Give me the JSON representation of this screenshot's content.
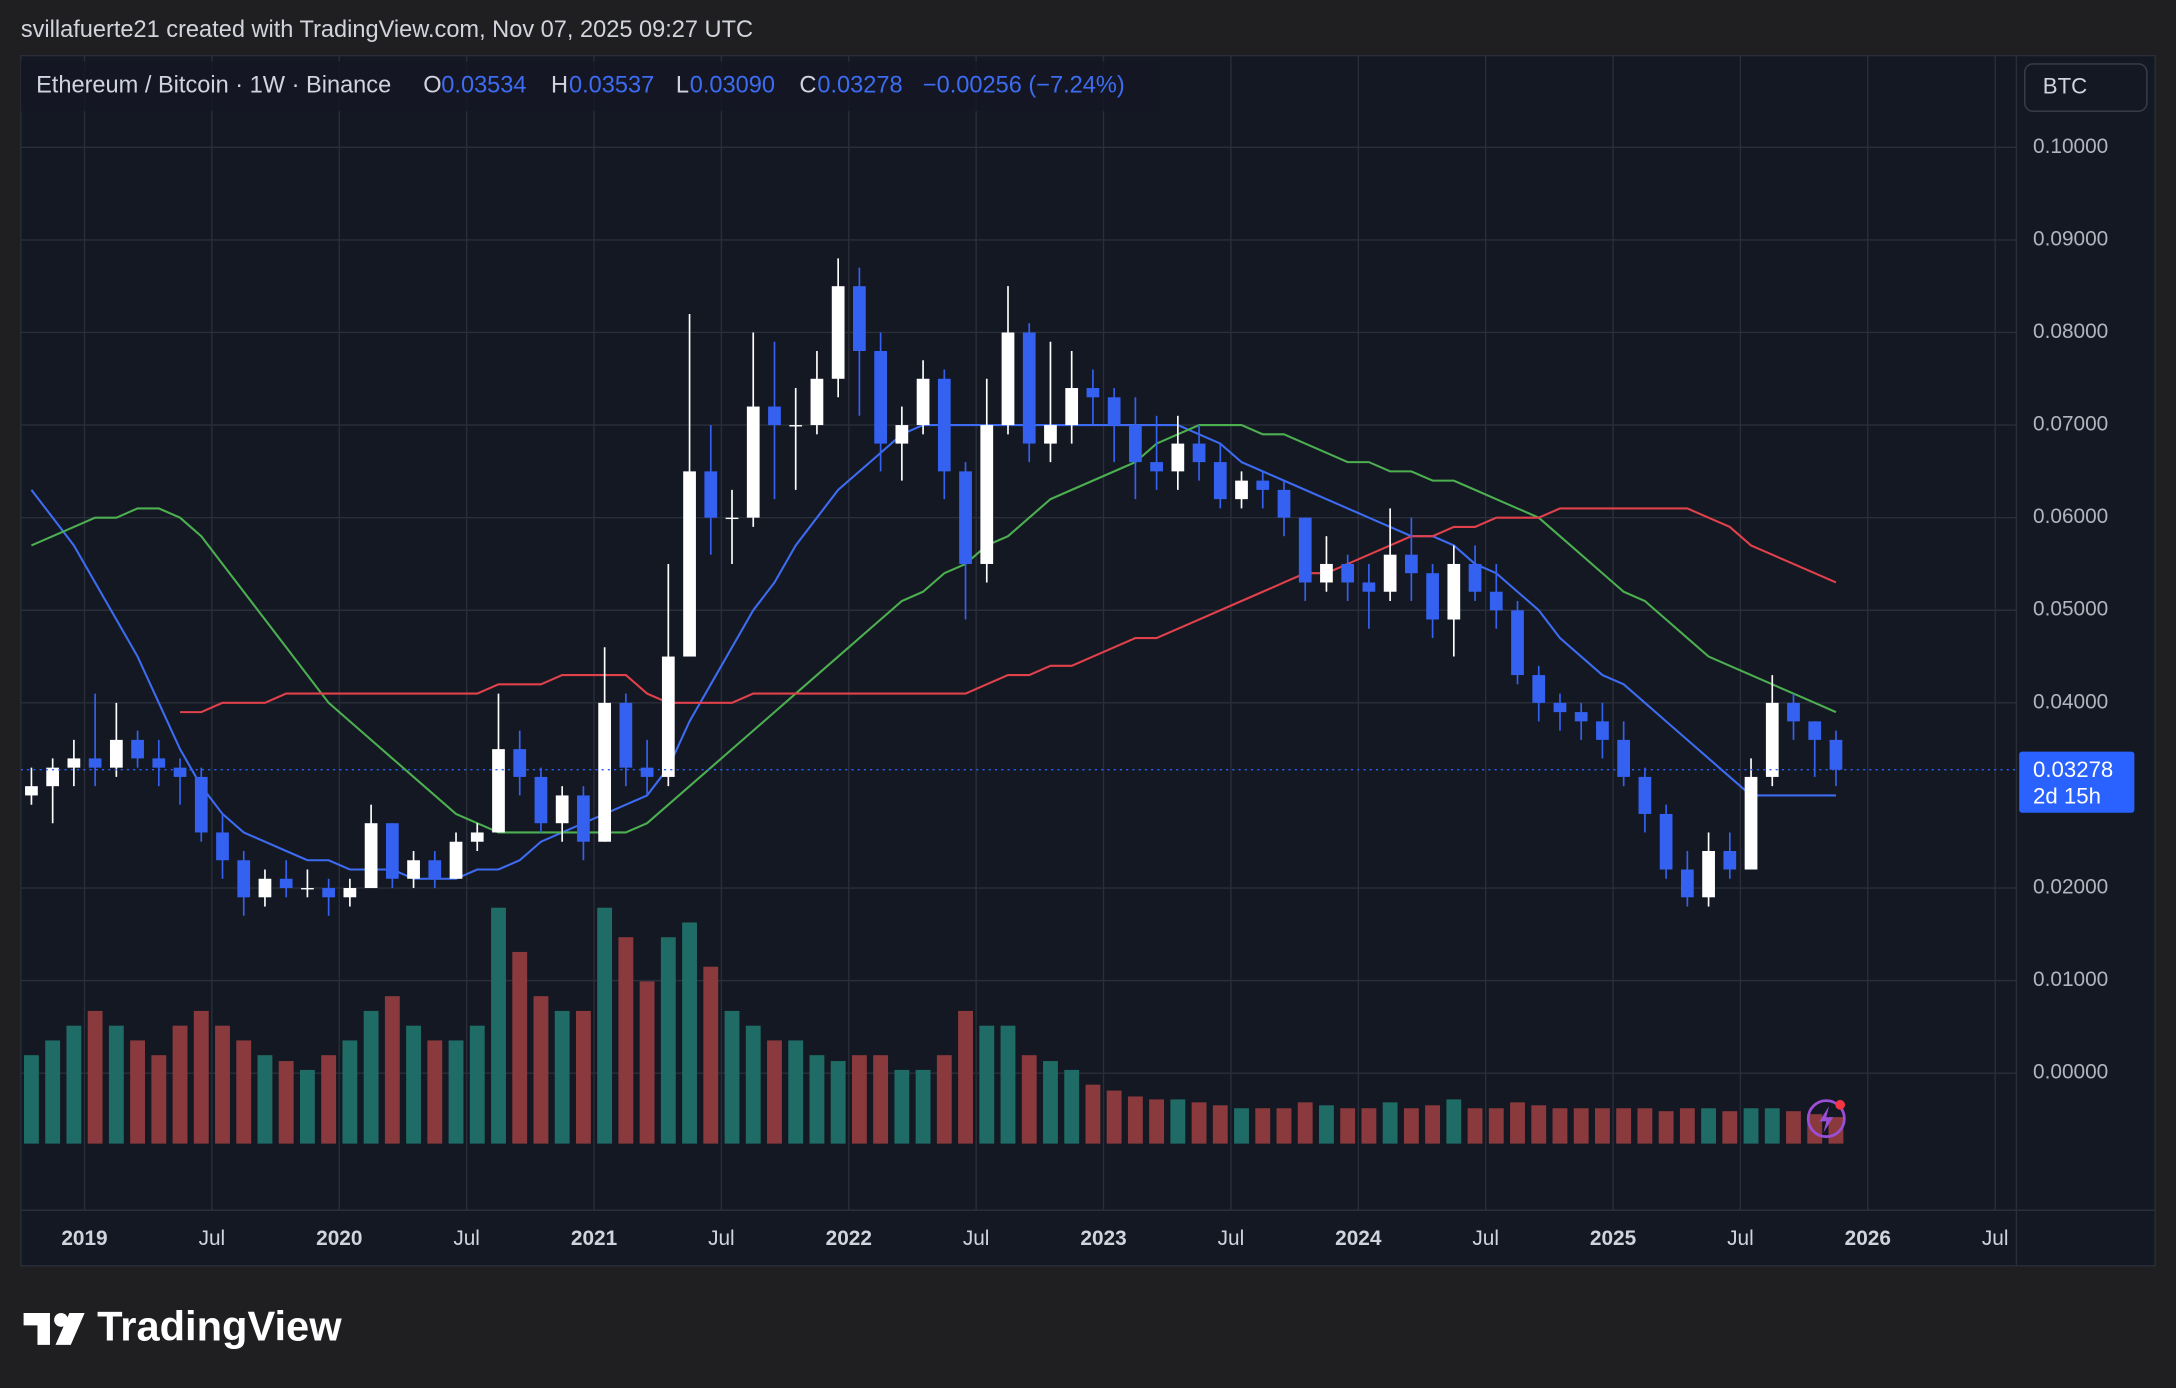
{
  "header": {
    "attribution": "svillafuerte21 created with TradingView.com, Nov 07, 2025 09:27 UTC"
  },
  "branding": "TradingView",
  "chart_data": {
    "type": "candlestick",
    "title": "Ethereum / Bitcoin · 1W · Binance",
    "ohlc_legend": [
      {
        "key": "O",
        "value": "0.03534"
      },
      {
        "key": "H",
        "value": "0.03537"
      },
      {
        "key": "L",
        "value": "0.03090"
      },
      {
        "key": "C",
        "value": "0.03278"
      }
    ],
    "change": "−0.00256 (−7.24%)",
    "currency": "BTC",
    "x": [
      "2018-10",
      "2018-11",
      "2018-12",
      "2019-01",
      "2019-02",
      "2019-03",
      "2019-04",
      "2019-05",
      "2019-06",
      "2019-07",
      "2019-08",
      "2019-09",
      "2019-10",
      "2019-11",
      "2019-12",
      "2020-01",
      "2020-02",
      "2020-03",
      "2020-04",
      "2020-05",
      "2020-06",
      "2020-07",
      "2020-08",
      "2020-09",
      "2020-10",
      "2020-11",
      "2020-12",
      "2021-01",
      "2021-02",
      "2021-03",
      "2021-04",
      "2021-05",
      "2021-06",
      "2021-07",
      "2021-08",
      "2021-09",
      "2021-10",
      "2021-11",
      "2021-12",
      "2022-01",
      "2022-02",
      "2022-03",
      "2022-04",
      "2022-05",
      "2022-06",
      "2022-07",
      "2022-08",
      "2022-09",
      "2022-10",
      "2022-11",
      "2022-12",
      "2023-01",
      "2023-02",
      "2023-03",
      "2023-04",
      "2023-05",
      "2023-06",
      "2023-07",
      "2023-08",
      "2023-09",
      "2023-10",
      "2023-11",
      "2023-12",
      "2024-01",
      "2024-02",
      "2024-03",
      "2024-04",
      "2024-05",
      "2024-06",
      "2024-07",
      "2024-08",
      "2024-09",
      "2024-10",
      "2024-11",
      "2024-12",
      "2025-01",
      "2025-02",
      "2025-03",
      "2025-04",
      "2025-05",
      "2025-06",
      "2025-07",
      "2025-08",
      "2025-09",
      "2025-10",
      "2025-11"
    ],
    "open": [
      0.03,
      0.031,
      0.033,
      0.034,
      0.033,
      0.036,
      0.034,
      0.033,
      0.032,
      0.026,
      0.023,
      0.019,
      0.021,
      0.02,
      0.02,
      0.019,
      0.02,
      0.027,
      0.021,
      0.023,
      0.021,
      0.025,
      0.026,
      0.035,
      0.032,
      0.027,
      0.03,
      0.025,
      0.04,
      0.033,
      0.032,
      0.045,
      0.065,
      0.06,
      0.06,
      0.072,
      0.07,
      0.07,
      0.075,
      0.085,
      0.078,
      0.068,
      0.07,
      0.075,
      0.065,
      0.055,
      0.07,
      0.08,
      0.068,
      0.07,
      0.074,
      0.073,
      0.07,
      0.066,
      0.065,
      0.068,
      0.066,
      0.062,
      0.064,
      0.063,
      0.06,
      0.053,
      0.055,
      0.053,
      0.052,
      0.056,
      0.054,
      0.049,
      0.055,
      0.052,
      0.05,
      0.043,
      0.04,
      0.039,
      0.038,
      0.036,
      0.032,
      0.028,
      0.022,
      0.019,
      0.024,
      0.022,
      0.032,
      0.04,
      0.038,
      0.036
    ],
    "high": [
      0.033,
      0.034,
      0.036,
      0.041,
      0.04,
      0.037,
      0.036,
      0.034,
      0.033,
      0.028,
      0.024,
      0.022,
      0.023,
      0.022,
      0.021,
      0.021,
      0.029,
      0.027,
      0.024,
      0.024,
      0.026,
      0.027,
      0.041,
      0.037,
      0.033,
      0.031,
      0.031,
      0.046,
      0.041,
      0.036,
      0.055,
      0.082,
      0.07,
      0.063,
      0.08,
      0.079,
      0.074,
      0.078,
      0.088,
      0.087,
      0.08,
      0.072,
      0.077,
      0.076,
      0.066,
      0.075,
      0.085,
      0.081,
      0.079,
      0.078,
      0.076,
      0.074,
      0.073,
      0.071,
      0.071,
      0.07,
      0.068,
      0.065,
      0.065,
      0.064,
      0.06,
      0.058,
      0.056,
      0.055,
      0.061,
      0.06,
      0.055,
      0.057,
      0.057,
      0.055,
      0.051,
      0.044,
      0.041,
      0.04,
      0.04,
      0.038,
      0.033,
      0.029,
      0.024,
      0.026,
      0.026,
      0.034,
      0.043,
      0.041,
      0.038,
      0.037
    ],
    "low": [
      0.029,
      0.027,
      0.031,
      0.031,
      0.032,
      0.033,
      0.031,
      0.029,
      0.025,
      0.021,
      0.017,
      0.018,
      0.019,
      0.019,
      0.017,
      0.018,
      0.02,
      0.02,
      0.02,
      0.02,
      0.021,
      0.024,
      0.026,
      0.03,
      0.026,
      0.025,
      0.023,
      0.025,
      0.031,
      0.03,
      0.031,
      0.045,
      0.056,
      0.055,
      0.059,
      0.062,
      0.063,
      0.069,
      0.073,
      0.071,
      0.065,
      0.064,
      0.069,
      0.062,
      0.049,
      0.053,
      0.069,
      0.066,
      0.066,
      0.068,
      0.07,
      0.066,
      0.062,
      0.063,
      0.063,
      0.064,
      0.061,
      0.061,
      0.061,
      0.058,
      0.051,
      0.052,
      0.051,
      0.048,
      0.051,
      0.051,
      0.047,
      0.045,
      0.051,
      0.048,
      0.042,
      0.038,
      0.037,
      0.036,
      0.034,
      0.031,
      0.026,
      0.021,
      0.018,
      0.018,
      0.021,
      0.022,
      0.031,
      0.036,
      0.032,
      0.031
    ],
    "close": [
      0.031,
      0.033,
      0.034,
      0.033,
      0.036,
      0.034,
      0.033,
      0.032,
      0.026,
      0.023,
      0.019,
      0.021,
      0.02,
      0.02,
      0.019,
      0.02,
      0.027,
      0.021,
      0.023,
      0.021,
      0.025,
      0.026,
      0.035,
      0.032,
      0.027,
      0.03,
      0.025,
      0.04,
      0.033,
      0.032,
      0.045,
      0.065,
      0.06,
      0.06,
      0.072,
      0.07,
      0.07,
      0.075,
      0.085,
      0.078,
      0.068,
      0.07,
      0.075,
      0.065,
      0.055,
      0.07,
      0.08,
      0.068,
      0.07,
      0.074,
      0.073,
      0.07,
      0.066,
      0.065,
      0.068,
      0.066,
      0.062,
      0.064,
      0.063,
      0.06,
      0.053,
      0.055,
      0.053,
      0.052,
      0.056,
      0.054,
      0.049,
      0.055,
      0.052,
      0.05,
      0.043,
      0.04,
      0.039,
      0.038,
      0.036,
      0.032,
      0.028,
      0.022,
      0.019,
      0.024,
      0.022,
      0.032,
      0.04,
      0.038,
      0.036,
      0.03278
    ],
    "up_color": "#ffffff",
    "down_color": "#3561f0",
    "series": [
      {
        "color": "#3d6cf2",
        "values": [
          0.063,
          0.06,
          0.057,
          0.053,
          0.049,
          0.045,
          0.04,
          0.035,
          0.031,
          0.028,
          0.026,
          0.025,
          0.024,
          0.023,
          0.023,
          0.022,
          0.022,
          0.022,
          0.021,
          0.021,
          0.021,
          0.022,
          0.022,
          0.023,
          0.025,
          0.026,
          0.027,
          0.028,
          0.029,
          0.03,
          0.033,
          0.038,
          0.042,
          0.046,
          0.05,
          0.053,
          0.057,
          0.06,
          0.063,
          0.065,
          0.067,
          0.069,
          0.07,
          0.07,
          0.07,
          0.07,
          0.07,
          0.07,
          0.07,
          0.07,
          0.07,
          0.07,
          0.07,
          0.07,
          0.07,
          0.069,
          0.068,
          0.066,
          0.065,
          0.064,
          0.063,
          0.062,
          0.061,
          0.06,
          0.059,
          0.058,
          0.058,
          0.057,
          0.055,
          0.054,
          0.052,
          0.05,
          0.047,
          0.045,
          0.043,
          0.042,
          0.04,
          0.038,
          0.036,
          0.034,
          0.032,
          0.03,
          0.03,
          0.03,
          0.03,
          0.03
        ]
      },
      {
        "color": "#4caf50",
        "values": [
          0.057,
          0.058,
          0.059,
          0.06,
          0.06,
          0.061,
          0.061,
          0.06,
          0.058,
          0.055,
          0.052,
          0.049,
          0.046,
          0.043,
          0.04,
          0.038,
          0.036,
          0.034,
          0.032,
          0.03,
          0.028,
          0.027,
          0.026,
          0.026,
          0.026,
          0.026,
          0.026,
          0.026,
          0.026,
          0.027,
          0.029,
          0.031,
          0.033,
          0.035,
          0.037,
          0.039,
          0.041,
          0.043,
          0.045,
          0.047,
          0.049,
          0.051,
          0.052,
          0.054,
          0.055,
          0.057,
          0.058,
          0.06,
          0.062,
          0.063,
          0.064,
          0.065,
          0.066,
          0.068,
          0.069,
          0.07,
          0.07,
          0.07,
          0.069,
          0.069,
          0.068,
          0.067,
          0.066,
          0.066,
          0.065,
          0.065,
          0.064,
          0.064,
          0.063,
          0.062,
          0.061,
          0.06,
          0.058,
          0.056,
          0.054,
          0.052,
          0.051,
          0.049,
          0.047,
          0.045,
          0.044,
          0.043,
          0.042,
          0.041,
          0.04,
          0.039
        ]
      },
      {
        "color": "#e0414b",
        "values": [
          null,
          null,
          null,
          null,
          null,
          null,
          null,
          0.039,
          0.039,
          0.04,
          0.04,
          0.04,
          0.041,
          0.041,
          0.041,
          0.041,
          0.041,
          0.041,
          0.041,
          0.041,
          0.041,
          0.041,
          0.042,
          0.042,
          0.042,
          0.043,
          0.043,
          0.043,
          0.043,
          0.041,
          0.04,
          0.04,
          0.04,
          0.04,
          0.041,
          0.041,
          0.041,
          0.041,
          0.041,
          0.041,
          0.041,
          0.041,
          0.041,
          0.041,
          0.041,
          0.042,
          0.043,
          0.043,
          0.044,
          0.044,
          0.045,
          0.046,
          0.047,
          0.047,
          0.048,
          0.049,
          0.05,
          0.051,
          0.052,
          0.053,
          0.054,
          0.054,
          0.055,
          0.056,
          0.057,
          0.058,
          0.058,
          0.059,
          0.059,
          0.06,
          0.06,
          0.06,
          0.061,
          0.061,
          0.061,
          0.061,
          0.061,
          0.061,
          0.061,
          0.06,
          0.059,
          0.057,
          0.056,
          0.055,
          0.054,
          0.053
        ]
      }
    ],
    "volume": {
      "up_color": "#1f6b66",
      "down_color": "#8a3a3c",
      "values": [
        30,
        35,
        40,
        45,
        40,
        35,
        30,
        40,
        45,
        40,
        35,
        30,
        28,
        25,
        30,
        35,
        45,
        50,
        40,
        35,
        35,
        40,
        80,
        65,
        50,
        45,
        45,
        80,
        70,
        55,
        70,
        75,
        60,
        45,
        40,
        35,
        35,
        30,
        28,
        30,
        30,
        25,
        25,
        30,
        45,
        40,
        40,
        30,
        28,
        25,
        20,
        18,
        16,
        15,
        15,
        14,
        13,
        12,
        12,
        12,
        14,
        13,
        12,
        12,
        14,
        12,
        13,
        15,
        12,
        12,
        14,
        13,
        12,
        12,
        12,
        12,
        12,
        11,
        12,
        12,
        11,
        12,
        12,
        11,
        10,
        9
      ]
    },
    "last_price": {
      "value": 0.03278,
      "label": "0.03278",
      "countdown": "2d 15h",
      "color": "#2962ff"
    },
    "xlim": [
      "2018-10",
      "2026-08"
    ],
    "xticks": [
      {
        "value": "2019-01",
        "label": "2019"
      },
      {
        "value": "2019-07",
        "label": "Jul"
      },
      {
        "value": "2020-01",
        "label": "2020"
      },
      {
        "value": "2020-07",
        "label": "Jul"
      },
      {
        "value": "2021-01",
        "label": "2021"
      },
      {
        "value": "2021-07",
        "label": "Jul"
      },
      {
        "value": "2022-01",
        "label": "2022"
      },
      {
        "value": "2022-07",
        "label": "Jul"
      },
      {
        "value": "2023-01",
        "label": "2023"
      },
      {
        "value": "2023-07",
        "label": "Jul"
      },
      {
        "value": "2024-01",
        "label": "2024"
      },
      {
        "value": "2024-07",
        "label": "Jul"
      },
      {
        "value": "2025-01",
        "label": "2025"
      },
      {
        "value": "2025-07",
        "label": "Jul"
      },
      {
        "value": "2026-01",
        "label": "2026"
      },
      {
        "value": "2026-07",
        "label": "Jul"
      }
    ],
    "ylim": [
      -0.0148,
      0.1099
    ],
    "yticks": [
      {
        "value": 0.1,
        "label": "0.10000"
      },
      {
        "value": 0.09,
        "label": "0.09000"
      },
      {
        "value": 0.08,
        "label": "0.08000"
      },
      {
        "value": 0.07,
        "label": "0.07000"
      },
      {
        "value": 0.06,
        "label": "0.06000"
      },
      {
        "value": 0.05,
        "label": "0.05000"
      },
      {
        "value": 0.04,
        "label": "0.04000"
      },
      {
        "value": 0.02,
        "label": "0.02000"
      },
      {
        "value": 0.01,
        "label": "0.01000"
      },
      {
        "value": 0,
        "label": "0.00000"
      }
    ],
    "grid": true
  }
}
